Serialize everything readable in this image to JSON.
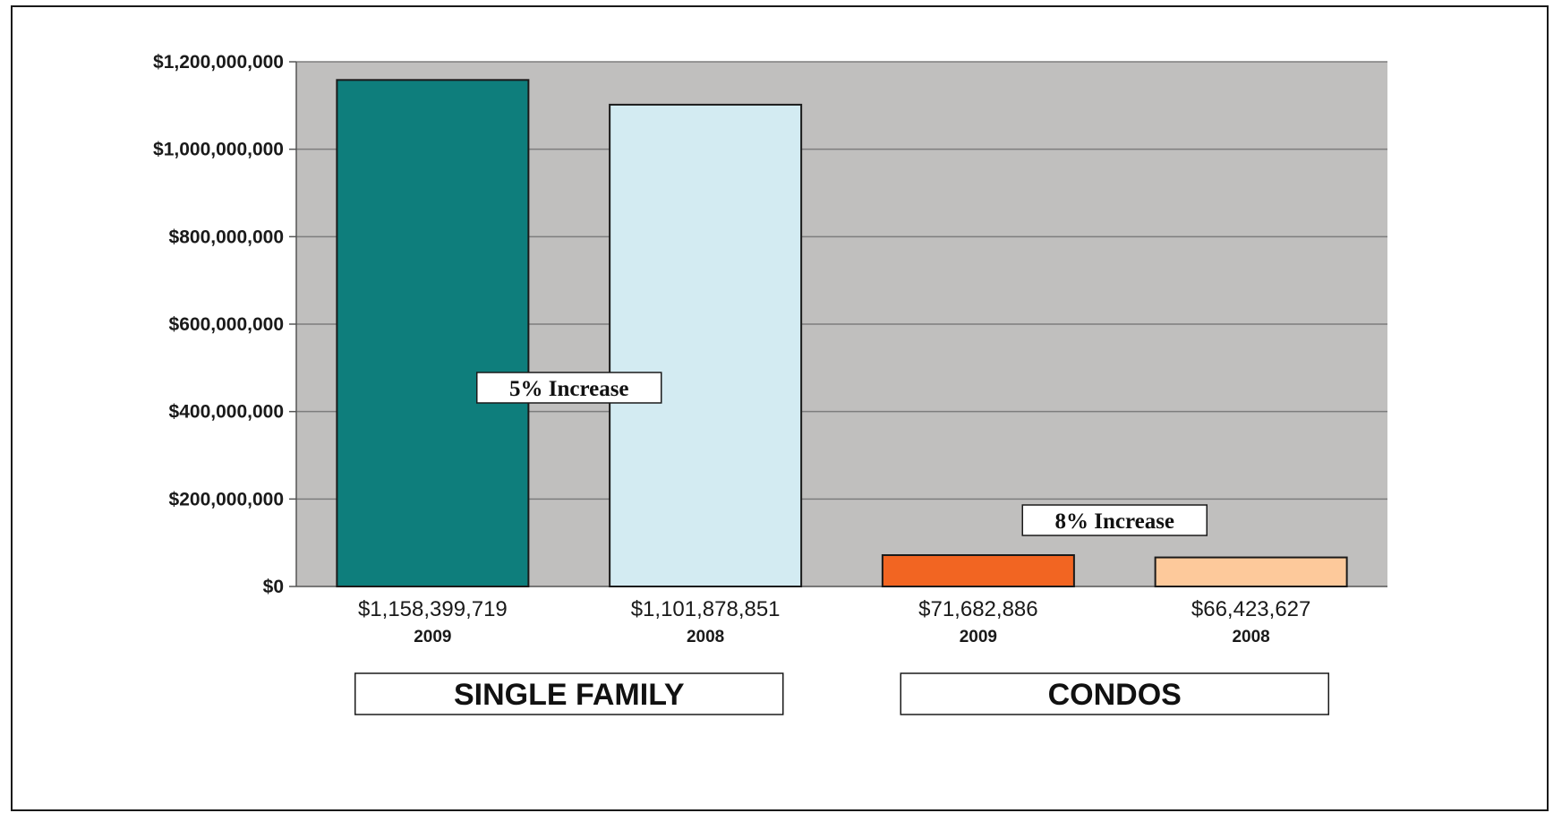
{
  "chart_data": {
    "type": "bar",
    "title": "",
    "xlabel": "",
    "ylabel": "",
    "ylim": [
      0,
      1200000000
    ],
    "yticks": [
      0,
      200000000,
      400000000,
      600000000,
      800000000,
      1000000000,
      1200000000
    ],
    "ytick_labels": [
      "$0",
      "$200,000,000",
      "$400,000,000",
      "$600,000,000",
      "$800,000,000",
      "$1,000,000,000",
      "$1,200,000,000"
    ],
    "grid": true,
    "plot_background": "#c0bfbe",
    "bars": [
      {
        "group": "SINGLE FAMILY",
        "year": "2009",
        "value": 1158399719,
        "label": "$1,158,399,719",
        "color": "#0e7e7c"
      },
      {
        "group": "SINGLE FAMILY",
        "year": "2008",
        "value": 1101878851,
        "label": "$1,101,878,851",
        "color": "#d3ebf2"
      },
      {
        "group": "CONDOS",
        "year": "2009",
        "value": 71682886,
        "label": "$71,682,886",
        "color": "#f26522"
      },
      {
        "group": "CONDOS",
        "year": "2008",
        "value": 66423627,
        "label": "$66,423,627",
        "color": "#fdc99b"
      }
    ],
    "annotations": [
      {
        "text": "5% Increase",
        "group": "SINGLE FAMILY"
      },
      {
        "text": "8% Increase",
        "group": "CONDOS"
      }
    ],
    "groups": [
      "SINGLE FAMILY",
      "CONDOS"
    ]
  }
}
